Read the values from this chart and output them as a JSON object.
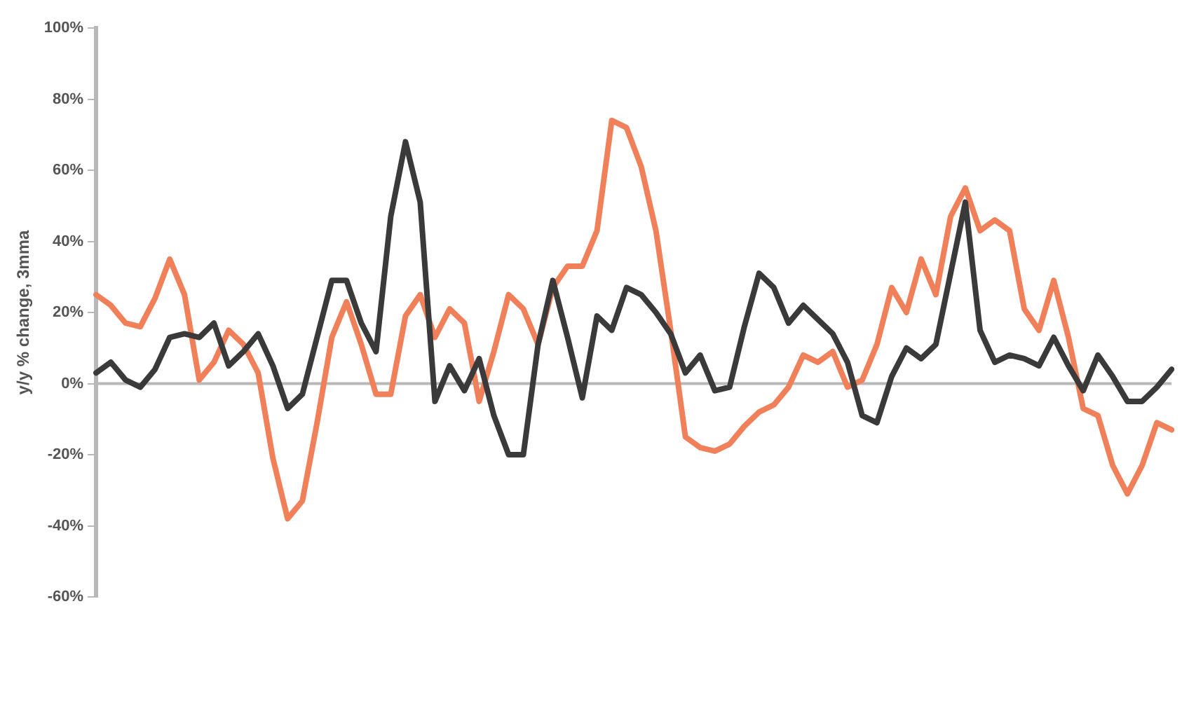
{
  "chart_data": {
    "type": "line",
    "ylabel": "y/y % change, 3mma",
    "categories": [
      null,
      null,
      null,
      null,
      null,
      null,
      null,
      null,
      null,
      null,
      null,
      null,
      null,
      null,
      null,
      null,
      null,
      null,
      null,
      null,
      null,
      null,
      null,
      null,
      null,
      null,
      null,
      null,
      null,
      null,
      null,
      null,
      null,
      null,
      null,
      null,
      null,
      null,
      null,
      null,
      null,
      null,
      null,
      null,
      null,
      null,
      null,
      null,
      null,
      null,
      null,
      null,
      null,
      null,
      null,
      null,
      null,
      null,
      null,
      null,
      null,
      null,
      null,
      null,
      null,
      null,
      null,
      null,
      null,
      null,
      null,
      null,
      null,
      null
    ],
    "series": [
      {
        "color": "#3a3a3a",
        "values": [
          3,
          6,
          1,
          -1,
          4,
          13,
          14,
          13,
          17,
          5,
          9,
          14,
          5,
          -7,
          -3,
          13,
          29,
          29,
          17,
          9,
          47,
          68,
          51,
          -5,
          5,
          -2,
          7,
          -9,
          -20,
          -20,
          11,
          29,
          13,
          -4,
          19,
          15,
          27,
          25,
          20,
          14,
          3,
          8,
          -2,
          -1,
          16,
          31,
          27,
          17,
          22,
          18,
          14,
          6,
          -9,
          -11,
          2,
          10,
          7,
          11,
          31,
          51,
          15,
          6,
          8,
          7,
          5,
          13,
          5,
          -2,
          8,
          2,
          -5,
          -5,
          -1,
          4
        ]
      },
      {
        "color": "#f0805a",
        "values": [
          25,
          22,
          17,
          16,
          24,
          35,
          25,
          1,
          6,
          15,
          11,
          3,
          -21,
          -38,
          -33,
          -11,
          13,
          23,
          11,
          -3,
          -3,
          19,
          25,
          13,
          21,
          17,
          -5,
          9,
          25,
          21,
          11,
          27,
          33,
          33,
          43,
          74,
          72,
          61,
          43,
          15,
          -15,
          -18,
          -19,
          -17,
          -12,
          -8,
          -6,
          -1,
          8,
          6,
          9,
          -1,
          1,
          11,
          27,
          20,
          35,
          25,
          47,
          55,
          43,
          46,
          43,
          21,
          15,
          29,
          13,
          -7,
          -9,
          -23,
          -31,
          -23,
          -11,
          -13
        ]
      }
    ],
    "ylim": [
      -60,
      100
    ],
    "yticks": [
      {
        "value": -60,
        "label": "-60%"
      },
      {
        "value": -40,
        "label": "-40%"
      },
      {
        "value": -20,
        "label": "-20%"
      },
      {
        "value": 0,
        "label": "0%"
      },
      {
        "value": 20,
        "label": "20%"
      },
      {
        "value": 40,
        "label": "40%"
      },
      {
        "value": 60,
        "label": "60%"
      },
      {
        "value": 80,
        "label": "80%"
      },
      {
        "value": 100,
        "label": "100%"
      }
    ],
    "ref_lines": [
      {
        "axis": "y",
        "value": 0,
        "color": "#b8b8b8"
      }
    ],
    "grid": false,
    "legend": false,
    "marker": "none",
    "line_style": "solid"
  }
}
